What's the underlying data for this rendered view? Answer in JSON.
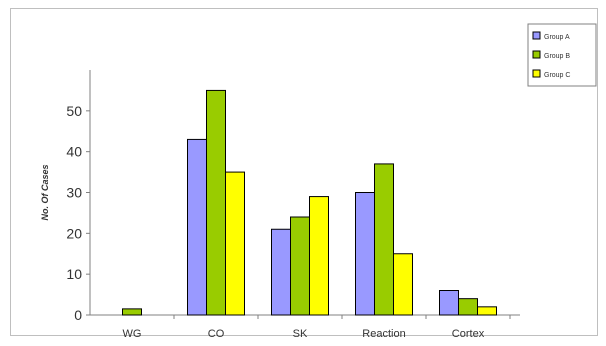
{
  "chart_data": {
    "type": "bar",
    "title": "",
    "xlabel": "",
    "ylabel": "No. Of Cases",
    "categories": [
      "WG",
      "CO",
      "SK",
      "Reaction",
      "Cortex"
    ],
    "series": [
      {
        "name": "Group A",
        "color": "#9999ff",
        "values": [
          0,
          43,
          21,
          30,
          6
        ]
      },
      {
        "name": "Group B",
        "color": "#99cc00",
        "values": [
          1.5,
          55,
          24,
          37,
          4
        ]
      },
      {
        "name": "Group C",
        "color": "#ffff00",
        "values": [
          0,
          35,
          29,
          15,
          2
        ]
      }
    ],
    "ylim": [
      0,
      60
    ],
    "yticks": [
      0,
      10,
      20,
      30,
      40,
      50
    ],
    "grid": false,
    "legend_position": "top-right"
  }
}
